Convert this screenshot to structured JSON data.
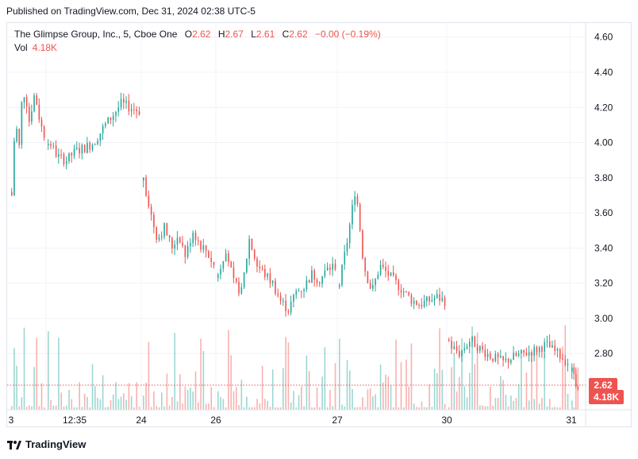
{
  "header": {
    "published": "Published on TradingView.com, Dec 31, 2024 02:38 UTC-5"
  },
  "legend": {
    "symbol": "The Glimpse Group, Inc., 5, Cboe One",
    "o_label": "O",
    "o": "2.62",
    "h_label": "H",
    "h": "2.67",
    "l_label": "L",
    "l": "2.61",
    "c_label": "C",
    "c": "2.62",
    "change": "−0.00 (−0.19%)",
    "vol_label": "Vol",
    "vol": "4.18K"
  },
  "footer": {
    "brand": "TradingView"
  },
  "colors": {
    "up": "#26a69a",
    "down": "#ef5350",
    "grid": "#f0f3fa",
    "text": "#131722"
  },
  "chart_data": {
    "type": "candlestick",
    "y_ticks": [
      "4.60",
      "4.40",
      "4.20",
      "4.00",
      "3.80",
      "3.60",
      "3.40",
      "3.20",
      "3.00",
      "2.80"
    ],
    "ylim": [
      2.48,
      4.68
    ],
    "x_ticks": [
      "3",
      "12:35",
      "24",
      "26",
      "27",
      "30",
      "31"
    ],
    "last_price_label": "2.62",
    "last_volume_label": "4.18K",
    "last_price": 2.62,
    "segments": [
      {
        "label": "3",
        "points": [
          3.7,
          4.15,
          3.95,
          4.3,
          4.25,
          4.1,
          4.28,
          4.22,
          4.1,
          4.05
        ]
      },
      {
        "label": "12:35",
        "points": [
          4.02,
          3.92,
          3.9,
          3.95,
          3.97,
          4.0,
          4.08,
          4.15,
          4.22,
          4.2,
          4.18
        ]
      },
      {
        "label": "24",
        "points": [
          3.8,
          3.6,
          3.45,
          3.52,
          3.4,
          3.48,
          3.35,
          3.5,
          3.42,
          3.38,
          3.3
        ]
      },
      {
        "label": "26",
        "points": [
          3.25,
          3.4,
          3.2,
          3.15,
          3.45,
          3.3,
          3.25,
          3.2,
          3.1,
          3.05,
          3.15,
          3.18,
          3.25,
          3.22,
          3.28,
          3.3
        ]
      },
      {
        "label": "27",
        "points": [
          3.2,
          3.45,
          3.75,
          3.3,
          3.15,
          3.3,
          3.25,
          3.2,
          3.15,
          3.1,
          3.08,
          3.1,
          3.12,
          3.1
        ]
      },
      {
        "label": "30",
        "points": [
          2.85,
          2.8,
          2.88,
          2.82,
          2.78,
          2.75,
          2.78,
          2.8,
          2.82,
          2.85,
          2.8,
          2.75
        ]
      },
      {
        "label": "31",
        "points": [
          2.7,
          2.66,
          2.65,
          2.64,
          2.62
        ]
      }
    ]
  }
}
